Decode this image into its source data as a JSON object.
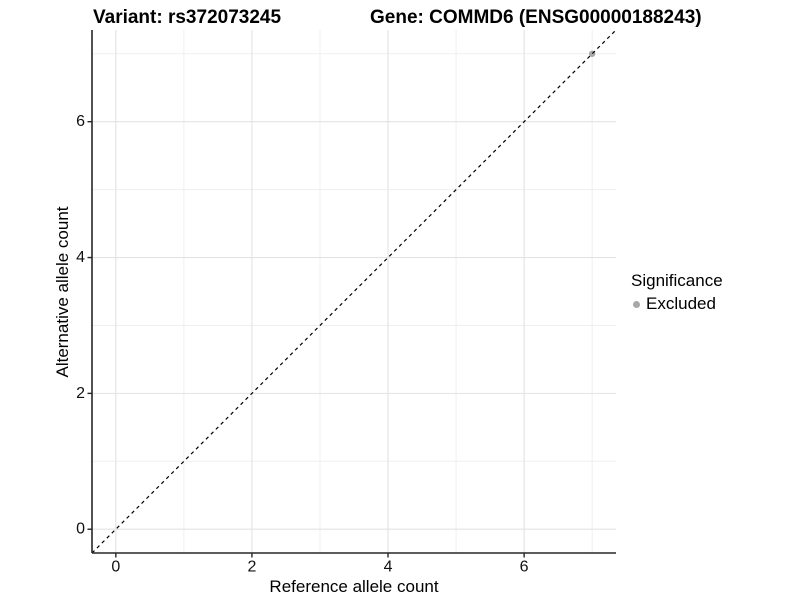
{
  "titles": {
    "variant": "Variant: rs372073245",
    "gene": "Gene: COMMD6 (ENSG00000188243)"
  },
  "chart_data": {
    "type": "scatter",
    "title_left": "Variant: rs372073245",
    "title_right": "Gene: COMMD6 (ENSG00000188243)",
    "xlabel": "Reference allele count",
    "ylabel": "Alternative allele count",
    "xlim": [
      -0.35,
      7.35
    ],
    "ylim": [
      -0.35,
      7.35
    ],
    "xticks": [
      0,
      2,
      4,
      6
    ],
    "yticks": [
      0,
      2,
      4,
      6
    ],
    "xminor": [
      1,
      3,
      5,
      7
    ],
    "yminor": [
      1,
      3,
      5,
      7
    ],
    "grid": true,
    "reference_line": {
      "kind": "identity",
      "style": "dashed",
      "color": "#000000"
    },
    "series": [
      {
        "name": "Excluded",
        "color": "#a8a8a8",
        "points": [
          {
            "x": 7,
            "y": 7
          }
        ]
      }
    ],
    "legend": {
      "title": "Significance",
      "position": "right",
      "entries": [
        {
          "label": "Excluded",
          "color": "#a8a8a8"
        }
      ]
    }
  },
  "colors": {
    "background": "#ffffff",
    "grid_major": "#e3e3e3",
    "grid_minor": "#efefef",
    "axis_line": "#262626",
    "tick_label": "#111111",
    "title_text": "#000000",
    "point": "#a8a8a8"
  }
}
